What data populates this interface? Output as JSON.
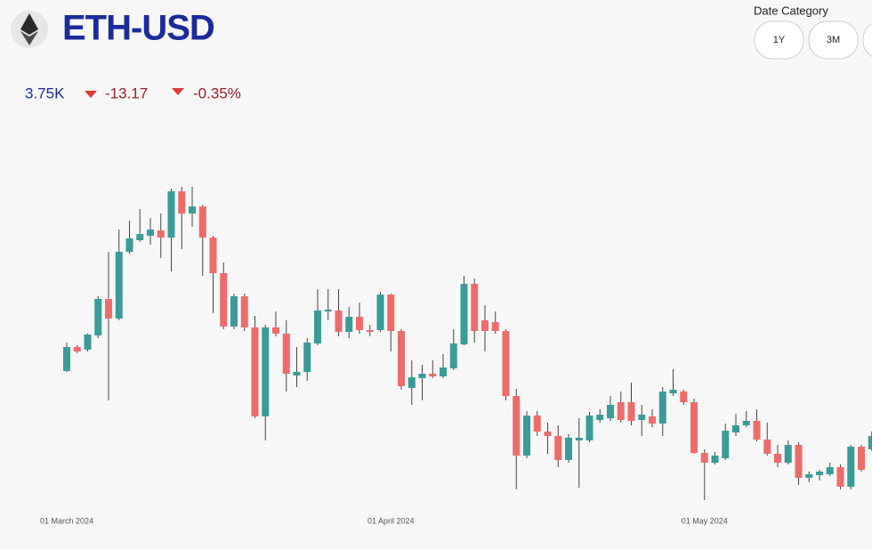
{
  "header": {
    "title": "ETH-USD",
    "price": "3.75K",
    "change": "-13.17",
    "change_pct": "-0.35%",
    "filter_label": "Date Category",
    "filter_options": [
      "1Y",
      "3M"
    ]
  },
  "chart_data": {
    "type": "candlestick",
    "x": [
      "2024-03-01",
      "2024-03-02",
      "2024-03-03",
      "2024-03-04",
      "2024-03-05",
      "2024-03-06",
      "2024-03-07",
      "2024-03-08",
      "2024-03-09",
      "2024-03-10",
      "2024-03-11",
      "2024-03-12",
      "2024-03-13",
      "2024-03-14",
      "2024-03-15",
      "2024-03-16",
      "2024-03-17",
      "2024-03-18",
      "2024-03-19",
      "2024-03-20",
      "2024-03-21",
      "2024-03-22",
      "2024-03-23",
      "2024-03-24",
      "2024-03-25",
      "2024-03-26",
      "2024-03-27",
      "2024-03-28",
      "2024-03-29",
      "2024-03-30",
      "2024-03-31",
      "2024-04-01",
      "2024-04-02",
      "2024-04-03",
      "2024-04-04",
      "2024-04-05",
      "2024-04-06",
      "2024-04-07",
      "2024-04-08",
      "2024-04-09",
      "2024-04-10",
      "2024-04-11",
      "2024-04-12",
      "2024-04-13",
      "2024-04-14",
      "2024-04-15",
      "2024-04-16",
      "2024-04-17",
      "2024-04-18",
      "2024-04-19",
      "2024-04-20",
      "2024-04-21",
      "2024-04-22",
      "2024-04-23",
      "2024-04-24",
      "2024-04-25",
      "2024-04-26",
      "2024-04-27",
      "2024-04-28",
      "2024-04-29",
      "2024-04-30",
      "2024-05-01",
      "2024-05-02",
      "2024-05-03",
      "2024-05-04",
      "2024-05-05",
      "2024-05-06",
      "2024-05-07",
      "2024-05-08",
      "2024-05-09",
      "2024-05-10",
      "2024-05-11",
      "2024-05-12",
      "2024-05-13",
      "2024-05-14",
      "2024-05-15",
      "2024-05-16",
      "2024-05-17"
    ],
    "open": [
      3252,
      3360,
      3348,
      3412,
      3576,
      3488,
      3788,
      3840,
      3860,
      3884,
      3852,
      4060,
      3960,
      3992,
      3852,
      3692,
      3452,
      3588,
      3448,
      3048,
      3448,
      3420,
      3232,
      3248,
      3376,
      3520,
      3524,
      3428,
      3496,
      3436,
      3436,
      3596,
      3432,
      3176,
      3220,
      3240,
      3228,
      3264,
      3372,
      3644,
      3480,
      3472,
      3432,
      3140,
      2872,
      3052,
      2980,
      2960,
      2852,
      2940,
      2940,
      3032,
      3040,
      3112,
      3112,
      3032,
      3048,
      3016,
      3152,
      3160,
      3112,
      2884,
      2840,
      2860,
      2976,
      3008,
      3028,
      2944,
      2880,
      2840,
      2920,
      2772,
      2784,
      2788,
      2820,
      2732,
      2912,
      2900
    ],
    "high": [
      3380,
      3368,
      3420,
      3588,
      3788,
      3888,
      3928,
      3980,
      3940,
      3960,
      4072,
      4080,
      4080,
      4000,
      3860,
      3740,
      3600,
      3600,
      3500,
      3460,
      3520,
      3480,
      3360,
      3400,
      3620,
      3620,
      3620,
      3540,
      3560,
      3460,
      3608,
      3600,
      3440,
      3300,
      3280,
      3300,
      3328,
      3440,
      3680,
      3668,
      3548,
      3520,
      3440,
      3172,
      3072,
      3072,
      3020,
      3008,
      2968,
      3040,
      3068,
      3080,
      3140,
      3160,
      3200,
      3100,
      3080,
      3180,
      3260,
      3168,
      3128,
      2900,
      2888,
      3016,
      3060,
      3072,
      3080,
      3020,
      2920,
      2940,
      2932,
      2800,
      2808,
      2840,
      2832,
      2920,
      2920,
      2980
    ],
    "low": [
      3248,
      3332,
      3340,
      3400,
      3120,
      3480,
      3780,
      3832,
      3820,
      3760,
      3700,
      3800,
      3900,
      3680,
      3512,
      3440,
      3440,
      3432,
      3040,
      2940,
      3408,
      3160,
      3180,
      3208,
      3368,
      3480,
      3408,
      3400,
      3420,
      3408,
      3428,
      3340,
      3168,
      3100,
      3120,
      3220,
      3220,
      3256,
      3368,
      3380,
      3340,
      3420,
      3120,
      2720,
      2860,
      2960,
      2880,
      2820,
      2840,
      2728,
      2932,
      3020,
      3028,
      3020,
      3008,
      2960,
      3000,
      2960,
      3140,
      3100,
      2880,
      2672,
      2832,
      2852,
      2960,
      3000,
      2936,
      2872,
      2820,
      2832,
      2740,
      2752,
      2760,
      2780,
      2720,
      2720,
      2800,
      2892
    ],
    "close": [
      3360,
      3340,
      3416,
      3576,
      3488,
      3788,
      3848,
      3868,
      3888,
      3852,
      4060,
      3960,
      3992,
      3852,
      3692,
      3452,
      3588,
      3448,
      3048,
      3448,
      3420,
      3240,
      3248,
      3380,
      3524,
      3528,
      3428,
      3496,
      3436,
      3428,
      3596,
      3432,
      3184,
      3224,
      3240,
      3228,
      3268,
      3376,
      3644,
      3432,
      3432,
      3432,
      3140,
      2872,
      3052,
      2980,
      2960,
      2852,
      2952,
      2952,
      3052,
      3056,
      3100,
      3032,
      3028,
      3056,
      3016,
      3160,
      3168,
      3112,
      2884,
      2840,
      2872,
      2984,
      3008,
      3028,
      2944,
      2880,
      2840,
      2920,
      2772,
      2788,
      2800,
      2820,
      2732,
      2912,
      2808,
      2960
    ],
    "up_color": "#3a9b98",
    "down_color": "#ee6b6b",
    "xlim": [
      "2024-02-24",
      "2024-05-18"
    ],
    "xticks": [
      {
        "value": "2024-03-01",
        "label": "01 March 2024"
      },
      {
        "value": "2024-04-01",
        "label": "01 April 2024"
      },
      {
        "value": "2024-05-01",
        "label": "01 May 2024"
      }
    ],
    "ylim": [
      2640,
      4400
    ]
  }
}
